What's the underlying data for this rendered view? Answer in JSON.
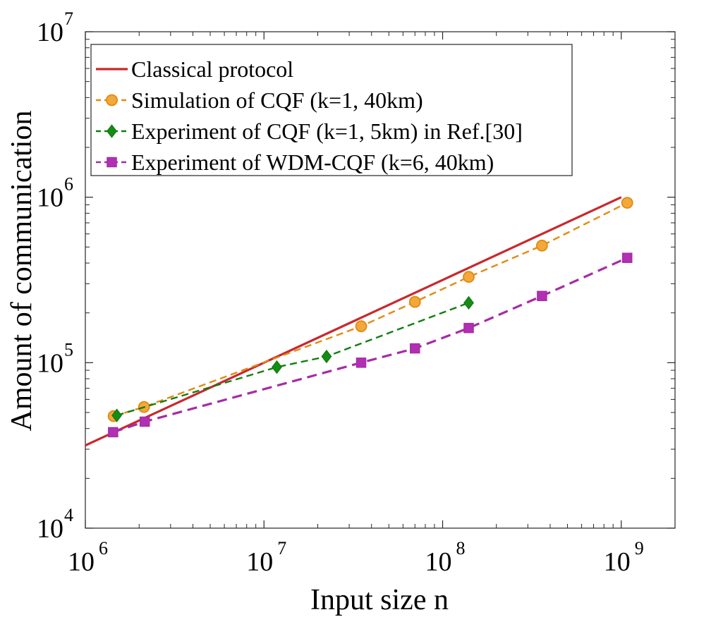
{
  "chart_data": {
    "type": "line",
    "title": "",
    "xlabel": "Input size n",
    "ylabel": "Amount of communication",
    "x_scale": "log",
    "y_scale": "log",
    "xlim": [
      1000000,
      2000000000
    ],
    "ylim": [
      10000,
      10000000
    ],
    "x_ticks": [
      {
        "value": 1000000,
        "base": "10",
        "exp": "6"
      },
      {
        "value": 10000000,
        "base": "10",
        "exp": "7"
      },
      {
        "value": 100000000,
        "base": "10",
        "exp": "8"
      },
      {
        "value": 1000000000,
        "base": "10",
        "exp": "9"
      }
    ],
    "y_ticks": [
      {
        "value": 10000,
        "base": "10",
        "exp": "4"
      },
      {
        "value": 100000,
        "base": "10",
        "exp": "5"
      },
      {
        "value": 1000000,
        "base": "10",
        "exp": "6"
      },
      {
        "value": 10000000,
        "base": "10",
        "exp": "7"
      }
    ],
    "grid": false,
    "legend_position": "top-left",
    "series": [
      {
        "name": "Classical protocol",
        "color": "#c8282d",
        "line": "solid",
        "marker": "none",
        "x": [
          1000000,
          1000000000
        ],
        "y": [
          31600,
          1000000
        ]
      },
      {
        "name": "Simulation of CQF (k=1, 40km)",
        "color": "#e28a11",
        "marker_fill": "#f2a83a",
        "line": "dashed",
        "marker": "circle",
        "x": [
          1440000,
          2130000,
          35000000,
          70000000,
          140000000,
          360000000,
          1080000000
        ],
        "y": [
          47500,
          54000,
          166000,
          233000,
          330000,
          510000,
          925000
        ]
      },
      {
        "name": "Experiment of CQF (k=1, 5km) in Ref.[30]",
        "color": "#127d12",
        "marker_fill": "#158c15",
        "line": "dashed",
        "marker": "diamond",
        "x": [
          1500000,
          11800000,
          22400000,
          140000000
        ],
        "y": [
          48000,
          94000,
          109000,
          230000
        ]
      },
      {
        "name": "Experiment of WDM-CQF (k=6, 40km)",
        "color": "#a62ba6",
        "marker_fill": "#b22fb4",
        "line": "dashed",
        "marker": "square",
        "x": [
          1430000,
          2150000,
          35000000,
          70000000,
          140000000,
          360000000,
          1080000000
        ],
        "y": [
          38000,
          44000,
          100000,
          122000,
          162000,
          253000,
          430000
        ]
      }
    ]
  }
}
